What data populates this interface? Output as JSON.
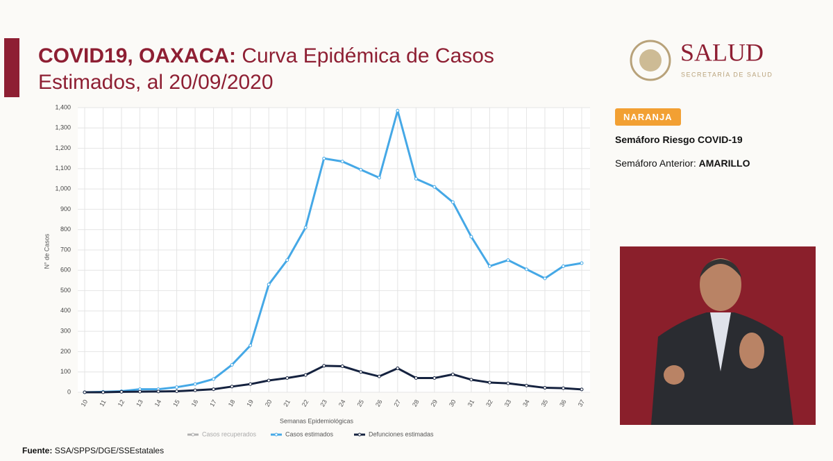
{
  "header": {
    "title_bold": "COVID19, OAXACA:",
    "title": "Curva Epidémica de Casos Estimados, al 20/09/2020"
  },
  "logo": {
    "name": "SALUD",
    "subtitle": "SECRETARÍA DE SALUD"
  },
  "semaforo": {
    "badge": "NARANJA",
    "label": "Semáforo Riesgo COVID-19",
    "previous_label": "Semáforo Anterior:",
    "previous_value": "AMARILLO"
  },
  "footer": {
    "label": "Fuente:",
    "source": "SSA/SPPS/DGE/SSEstatales"
  },
  "chart_data": {
    "type": "line",
    "ylabel": "N° de Casos",
    "xlabel": "Semanas Epidemiológicas",
    "categories": [
      "10",
      "11",
      "12",
      "13",
      "14",
      "15",
      "16",
      "17",
      "18",
      "19",
      "20",
      "21",
      "22",
      "23",
      "24",
      "25",
      "26",
      "27",
      "28",
      "29",
      "30",
      "31",
      "32",
      "33",
      "34",
      "35",
      "36",
      "37"
    ],
    "series": [
      {
        "name": "Casos recuperados",
        "color": "#b0b0b0",
        "values": [
          null,
          null,
          null,
          null,
          null,
          null,
          null,
          null,
          null,
          null,
          null,
          null,
          null,
          null,
          null,
          null,
          null,
          null,
          null,
          null,
          null,
          null,
          null,
          null,
          null,
          null,
          null,
          null
        ]
      },
      {
        "name": "Casos estimados",
        "color": "#45a8e6",
        "values": [
          0,
          2,
          5,
          15,
          15,
          25,
          40,
          65,
          135,
          230,
          530,
          650,
          810,
          1150,
          1135,
          1095,
          1055,
          1385,
          1050,
          1010,
          935,
          765,
          620,
          650,
          605,
          560,
          620,
          635
        ]
      },
      {
        "name": "Defunciones estimadas",
        "color": "#15223f",
        "values": [
          0,
          0,
          2,
          3,
          4,
          5,
          10,
          15,
          28,
          40,
          58,
          70,
          85,
          130,
          128,
          100,
          78,
          118,
          70,
          70,
          88,
          62,
          48,
          44,
          33,
          22,
          20,
          14
        ]
      }
    ],
    "ylim": [
      0,
      1400
    ],
    "yticks": [
      0,
      100,
      200,
      300,
      400,
      500,
      600,
      700,
      800,
      900,
      {
        "value": 1000,
        "label": "1,000"
      },
      {
        "value": 1100,
        "label": "1,100"
      },
      {
        "value": 1200,
        "label": "1,200"
      },
      {
        "value": 1300,
        "label": "1,300"
      },
      {
        "value": 1400,
        "label": "1,400"
      }
    ],
    "grid": true,
    "legend": "bottom"
  }
}
